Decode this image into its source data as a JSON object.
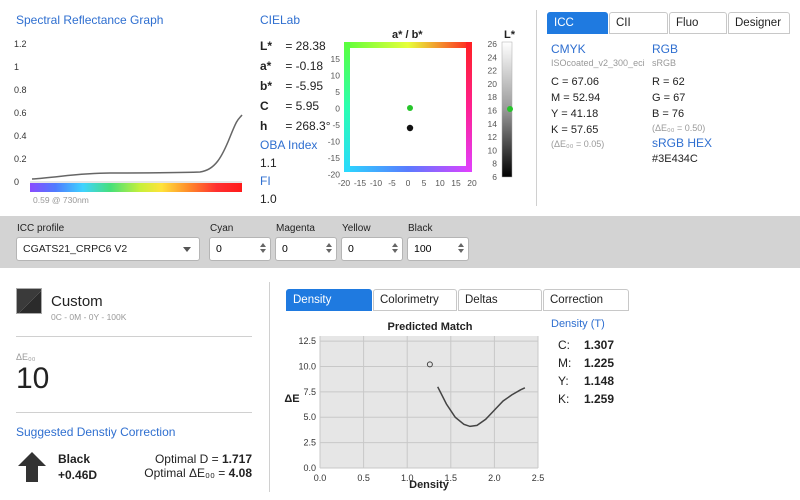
{
  "spectral": {
    "title": "Spectral Reflectance Graph",
    "y_ticks": [
      "1.2",
      "1",
      "0.8",
      "0.6",
      "0.4",
      "0.2",
      "0"
    ],
    "readout": "0.59 @ 730nm"
  },
  "cielab": {
    "title": "CIELab",
    "rows": [
      {
        "key": "L*",
        "value": "= 28.38"
      },
      {
        "key": "a*",
        "value": "= -0.18"
      },
      {
        "key": "b*",
        "value": "= -5.95"
      },
      {
        "key": "C",
        "value": "= 5.95"
      },
      {
        "key": "h",
        "value": "= 268.3°"
      }
    ],
    "oba_label": "OBA Index",
    "oba_value": "1.1",
    "fi_label": "FI",
    "fi_value": "1.0"
  },
  "ab_plot": {
    "title": "a* / b*",
    "y_ticks": [
      "15",
      "10",
      "5",
      "0",
      "-5",
      "-10",
      "-15",
      "-20"
    ],
    "x_ticks": [
      "-20",
      "-15",
      "-10",
      "-5",
      "0",
      "5",
      "10",
      "15",
      "20"
    ],
    "l_title": "L*",
    "l_ticks": [
      "26",
      "24",
      "22",
      "20",
      "18",
      "16",
      "14",
      "12",
      "10",
      "8",
      "6"
    ]
  },
  "tabs": {
    "items": [
      {
        "label": "ICC",
        "active": true
      },
      {
        "label": "CII",
        "active": false
      },
      {
        "label": "Fluo",
        "active": false
      },
      {
        "label": "Designer",
        "active": false
      }
    ]
  },
  "icc": {
    "cmyk_title": "CMYK",
    "cmyk_profile": "ISOcoated_v2_300_eci",
    "cmyk_values": [
      "C = 67.06",
      "M = 52.94",
      "Y = 41.18",
      "K = 57.65"
    ],
    "cmyk_de": "(ΔE₀₀ = 0.05)",
    "rgb_title": "RGB",
    "rgb_profile": "sRGB",
    "rgb_values": [
      "R = 62",
      "G = 67",
      "B = 76"
    ],
    "rgb_de": "(ΔE₀₀ = 0.50)",
    "hex_title": "sRGB HEX",
    "hex_value": "#3E434C"
  },
  "toolbar": {
    "icc_label": "ICC profile",
    "icc_value": "CGATS21_CRPC6 V2",
    "cyan_label": "Cyan",
    "cyan_value": "0",
    "magenta_label": "Magenta",
    "magenta_value": "0",
    "yellow_label": "Yellow",
    "yellow_value": "0",
    "black_label": "Black",
    "black_value": "100"
  },
  "swatch": {
    "name": "Custom",
    "formula": "0C - 0M - 0Y - 100K",
    "color": "#2b2b2b"
  },
  "delta": {
    "label": "ΔE₀₀",
    "value": "10"
  },
  "correction": {
    "title": "Suggested Denstiy Correction",
    "channel": "Black",
    "amount": "+0.46D",
    "optimal_d_label": "Optimal D = ",
    "optimal_d_value": "1.717",
    "optimal_de_label": "Optimal ΔE₀₀ = ",
    "optimal_de_value": "4.08"
  },
  "bottom_tabs": {
    "items": [
      {
        "label": "Density",
        "active": true
      },
      {
        "label": "Colorimetry",
        "active": false
      },
      {
        "label": "Deltas",
        "active": false
      },
      {
        "label": "Correction",
        "active": false
      }
    ]
  },
  "chart_data": {
    "type": "line",
    "title": "Predicted Match",
    "xlabel": "Density",
    "ylabel": "ΔE",
    "xlim": [
      0.0,
      2.5
    ],
    "ylim": [
      0,
      13
    ],
    "x_ticks": [
      "0.0",
      "0.5",
      "1.0",
      "1.5",
      "2.0",
      "2.5"
    ],
    "y_ticks": [
      "12.5",
      "10.0",
      "7.5",
      "5.0",
      "2.5",
      "0.0"
    ],
    "grid": true,
    "series": [
      {
        "x": [
          1.35,
          1.45,
          1.55,
          1.65,
          1.72,
          1.8,
          1.9,
          2.0,
          2.1,
          2.2,
          2.3,
          2.35
        ],
        "y": [
          8.0,
          6.3,
          5.0,
          4.3,
          4.1,
          4.2,
          4.8,
          5.7,
          6.6,
          7.2,
          7.7,
          7.9
        ]
      }
    ],
    "marker": {
      "x": 1.26,
      "y": 10.2
    }
  },
  "density_panel": {
    "title": "Density (T)",
    "rows": [
      {
        "key": "C:",
        "value": "1.307"
      },
      {
        "key": "M:",
        "value": "1.225"
      },
      {
        "key": "Y:",
        "value": "1.148"
      },
      {
        "key": "K:",
        "value": "1.259"
      }
    ]
  }
}
